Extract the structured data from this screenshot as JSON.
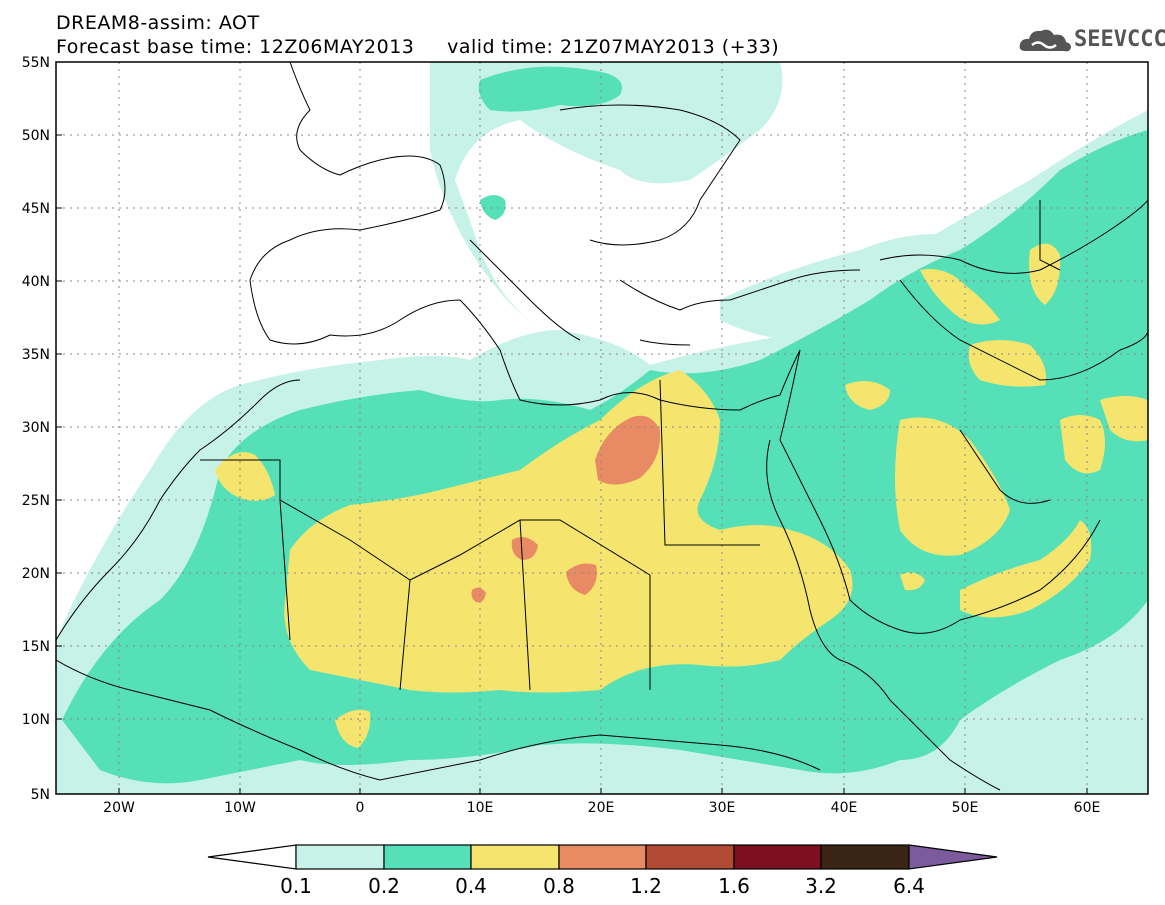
{
  "header": {
    "title_line1": "DREAM8-assim: AOT",
    "title_line2": "Forecast base time: 12Z06MAY2013     valid time: 21Z07MAY2013 (+33)",
    "logo_text": "SEEVCCC"
  },
  "map": {
    "lat_labels": [
      "55N",
      "50N",
      "45N",
      "40N",
      "35N",
      "30N",
      "25N",
      "20N",
      "15N",
      "10N",
      "5N"
    ],
    "lon_labels": [
      "20W",
      "10W",
      "0",
      "10E",
      "20E",
      "30E",
      "40E",
      "50E",
      "60E"
    ]
  },
  "legend": {
    "labels": [
      "0.1",
      "0.2",
      "0.4",
      "0.8",
      "1.2",
      "1.6",
      "3.2",
      "6.4"
    ],
    "colors": [
      "#ffffff",
      "#c7f2e8",
      "#55e0b8",
      "#f5e56e",
      "#e88a63",
      "#b04a35",
      "#7d0f23",
      "#3a2514",
      "#7b5b9c"
    ]
  }
}
